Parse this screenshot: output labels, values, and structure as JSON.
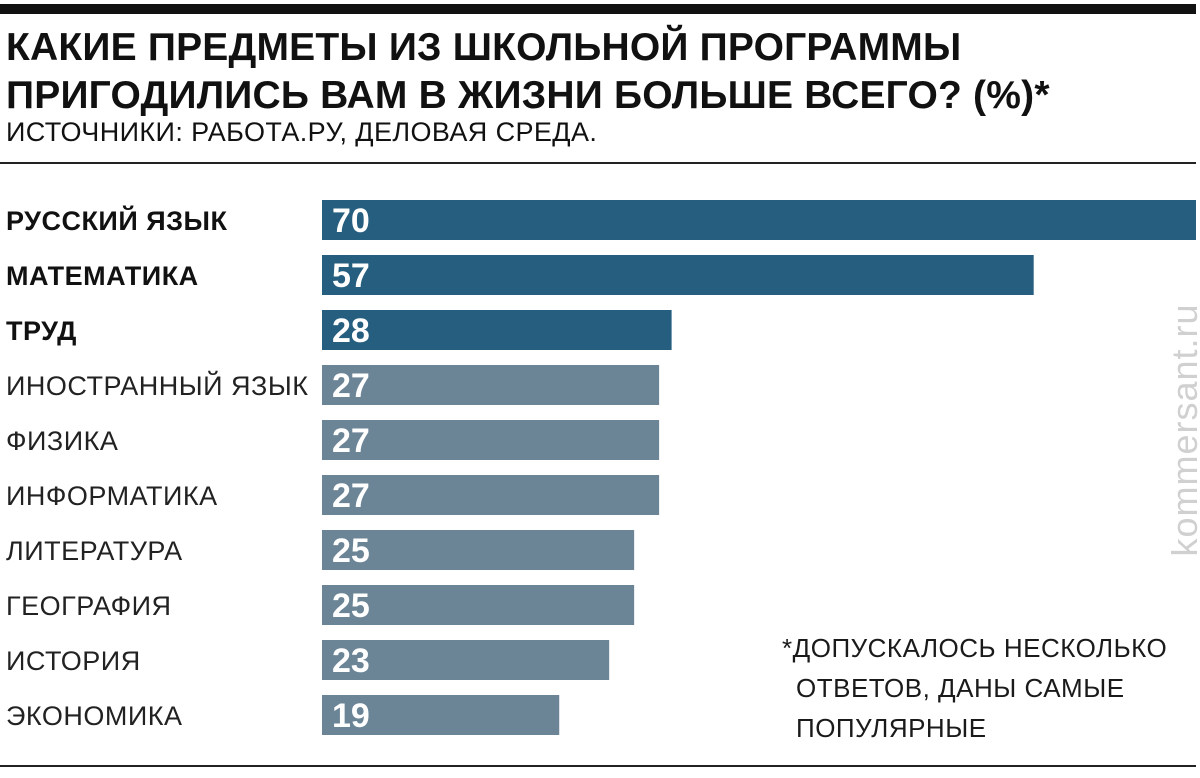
{
  "header": {
    "title": "КАКИЕ ПРЕДМЕТЫ ИЗ ШКОЛЬНОЙ ПРОГРАММЫ ПРИГОДИЛИСЬ ВАМ В ЖИЗНИ БОЛЬШЕ ВСЕГО? (%)*",
    "subtitle": "ИСТОЧНИКИ: РАБОТА.РУ, ДЕЛОВАЯ СРЕДА."
  },
  "footnote": {
    "lines": [
      "*ДОПУСКАЛОСЬ НЕСКОЛЬКО",
      "ОТВЕТОВ, ДАНЫ САМЫЕ",
      "ПОПУЛЯРНЫЕ"
    ]
  },
  "watermark": "kommersant.ru",
  "colors": {
    "highlight": "#255e7e",
    "regular": "#6b8496",
    "rule": "#111111"
  },
  "chart_data": {
    "type": "bar",
    "orientation": "horizontal",
    "categories": [
      "РУССКИЙ ЯЗЫК",
      "МАТЕМАТИКА",
      "ТРУД",
      "ИНОСТРАННЫЙ ЯЗЫК",
      "ФИЗИКА",
      "ИНФОРМАТИКА",
      "ЛИТЕРАТУРА",
      "ГЕОГРАФИЯ",
      "ИСТОРИЯ",
      "ЭКОНОМИКА"
    ],
    "values": [
      70,
      57,
      28,
      27,
      27,
      27,
      25,
      25,
      23,
      19
    ],
    "highlighted": [
      true,
      true,
      true,
      false,
      false,
      false,
      false,
      false,
      false,
      false
    ],
    "value_labels": [
      "70",
      "57",
      "28",
      "27",
      "27",
      "27",
      "25",
      "25",
      "23",
      "19"
    ],
    "xlim": [
      0,
      70
    ],
    "grid": false,
    "legend": "none"
  }
}
